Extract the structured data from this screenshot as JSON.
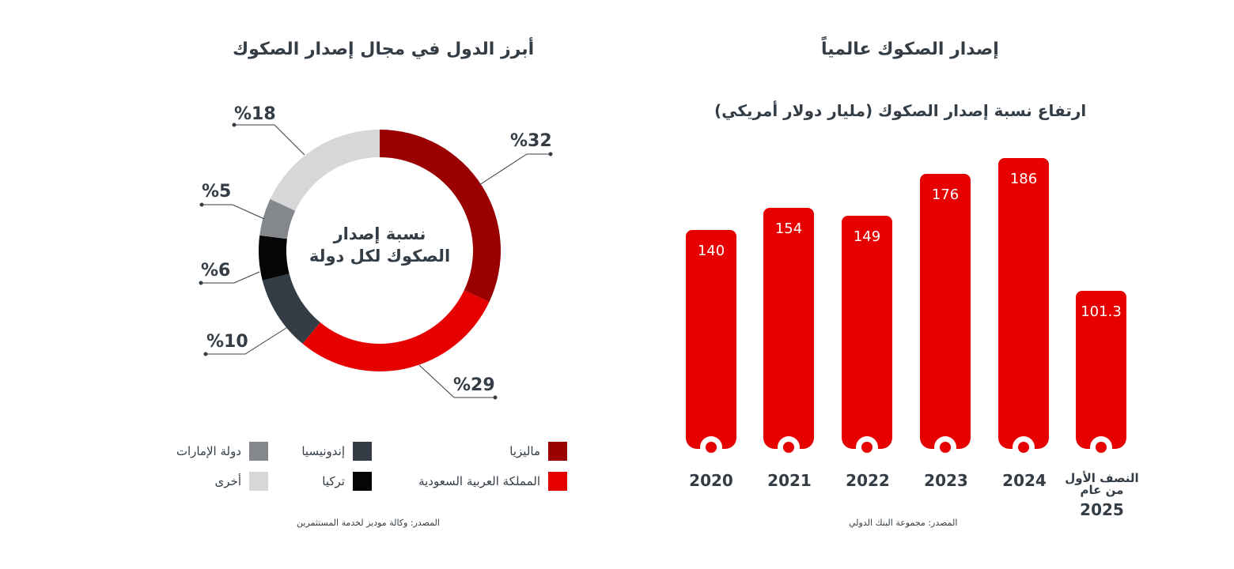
{
  "colors": {
    "malaysia": "#9b0000",
    "saudi": "#e60000",
    "indonesia": "#343d45",
    "turkey": "#050505",
    "uae": "#84888c",
    "other": "#d5d7d8",
    "bar": "#e60000",
    "text": "#343d45"
  },
  "left_chart": {
    "title": "أبرز الدول في مجال إصدار الصكوك",
    "center_label": "نسبة إصدار الصكوك لكل دولة",
    "source": "المصدر: وكالة موديز لخدمة المستثمرين",
    "legend": [
      {
        "label": "ماليزيا",
        "color_key": "malaysia"
      },
      {
        "label": "إندونيسيا",
        "color_key": "indonesia"
      },
      {
        "label": "دولة الإمارات",
        "color_key": "uae"
      },
      {
        "label": "المملكة العربية السعودية",
        "color_key": "saudi"
      },
      {
        "label": "تركيا",
        "color_key": "turkey"
      },
      {
        "label": "أخرى",
        "color_key": "other"
      }
    ],
    "pct_labels": [
      "%32",
      "%29",
      "%10",
      "%6",
      "%5",
      "%18"
    ]
  },
  "right_chart": {
    "title": "إصدار الصكوك عالمياً",
    "subtitle": "ارتفاع نسبة إصدار الصكوك (مليار دولار أمريكي)",
    "source": "المصدر: مجموعة البنك الدولي",
    "value_labels": [
      "140",
      "154",
      "149",
      "176",
      "186",
      "101.3"
    ],
    "year_labels": [
      "2020",
      "2021",
      "2022",
      "2023",
      "2024"
    ],
    "last_label_line1": "النصف الأول",
    "last_label_line2": "من عام",
    "last_label_year": "2025"
  },
  "chart_data": [
    {
      "type": "pie",
      "title": "أبرز الدول في مجال إصدار الصكوك",
      "categories": [
        "ماليزيا",
        "المملكة العربية السعودية",
        "إندونيسيا",
        "تركيا",
        "دولة الإمارات",
        "أخرى"
      ],
      "values": [
        32,
        29,
        10,
        6,
        5,
        18
      ],
      "unit": "%"
    },
    {
      "type": "bar",
      "title": "إصدار الصكوك عالمياً",
      "subtitle": "ارتفاع نسبة إصدار الصكوك (مليار دولار أمريكي)",
      "categories": [
        "2020",
        "2021",
        "2022",
        "2023",
        "2024",
        "النصف الأول من عام 2025"
      ],
      "values": [
        140,
        154,
        149,
        176,
        186,
        101.3
      ],
      "ylim": [
        0,
        200
      ],
      "grid": false
    }
  ]
}
